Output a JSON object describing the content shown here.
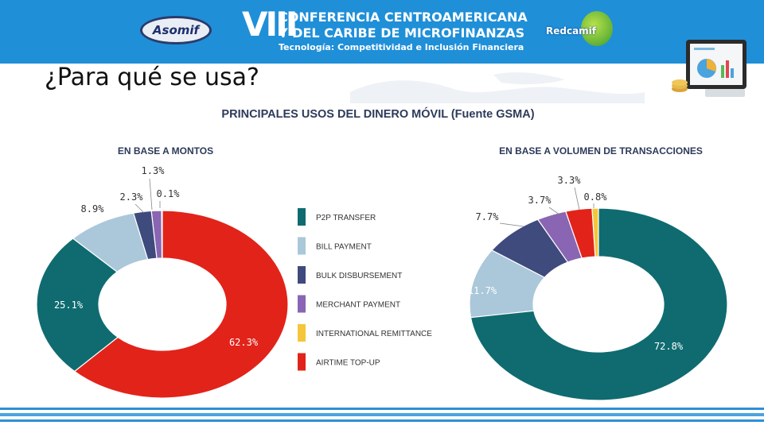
{
  "header": {
    "logo_left": "Asomif",
    "roman_numeral": "VIII",
    "conference_line1": "CONFERENCIA CENTROAMERICANA",
    "conference_line2": "Y DEL CARIBE DE MICROFINANZAS",
    "conference_line3": "Tecnología: Competitividad e Inclusión Financiera",
    "logo_right": "Redcamif"
  },
  "page_title": "¿Para qué se usa?",
  "colors": {
    "banner": "#1f8fd8",
    "p2p_transfer": "#0f6b70",
    "bill_payment": "#aac8d9",
    "bulk_disbursement": "#3f4a7d",
    "merchant_payment": "#8a65b3",
    "international_remittance": "#f5c63a",
    "airtime_topup": "#e2231a"
  },
  "chart_data": {
    "title": "PRINCIPALES USOS DEL DINERO MÓVIL (Fuente GSMA)",
    "legend": [
      {
        "name": "P2P TRANSFER",
        "color": "#0f6b70"
      },
      {
        "name": "BILL PAYMENT",
        "color": "#aac8d9"
      },
      {
        "name": "BULK DISBURSEMENT",
        "color": "#3f4a7d"
      },
      {
        "name": "MERCHANT PAYMENT",
        "color": "#8a65b3"
      },
      {
        "name": "INTERNATIONAL REMITTANCE",
        "color": "#f5c63a"
      },
      {
        "name": "AIRTIME TOP-UP",
        "color": "#e2231a"
      }
    ],
    "legend_placement": "center",
    "charts": [
      {
        "type": "pie",
        "subtitle": "EN BASE A MONTOS",
        "slices": [
          {
            "category": "P2P TRANSFER",
            "value": 25.1,
            "label": "25.1%"
          },
          {
            "category": "BILL PAYMENT",
            "value": 8.9,
            "label": "8.9%"
          },
          {
            "category": "BULK DISBURSEMENT",
            "value": 2.3,
            "label": "2.3%"
          },
          {
            "category": "MERCHANT PAYMENT",
            "value": 1.3,
            "label": "1.3%"
          },
          {
            "category": "INTERNATIONAL REMITTANCE",
            "value": 0.1,
            "label": "0.1%"
          },
          {
            "category": "AIRTIME TOP-UP",
            "value": 62.3,
            "label": "62.3%"
          }
        ]
      },
      {
        "type": "pie",
        "subtitle": "EN BASE A VOLUMEN DE TRANSACCIONES",
        "slices": [
          {
            "category": "P2P TRANSFER",
            "value": 72.8,
            "label": "72.8%"
          },
          {
            "category": "BILL PAYMENT",
            "value": 11.7,
            "label": "11.7%"
          },
          {
            "category": "BULK DISBURSEMENT",
            "value": 7.7,
            "label": "7.7%"
          },
          {
            "category": "MERCHANT PAYMENT",
            "value": 3.7,
            "label": "3.7%"
          },
          {
            "category": "INTERNATIONAL REMITTANCE",
            "value": 0.8,
            "label": "0.8%"
          },
          {
            "category": "AIRTIME TOP-UP",
            "value": 3.3,
            "label": "3.3%"
          }
        ]
      }
    ]
  }
}
